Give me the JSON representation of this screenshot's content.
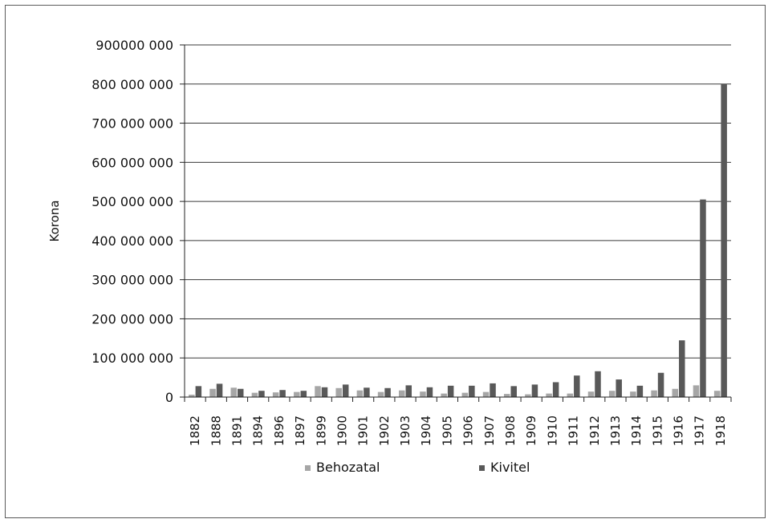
{
  "chart_data": {
    "type": "bar",
    "ylabel": "Korona",
    "ylim": [
      0,
      900000000
    ],
    "grid": true,
    "legend_position": "bottom",
    "y_tick_values": [
      0,
      100000000,
      200000000,
      300000000,
      400000000,
      500000000,
      600000000,
      700000000,
      800000000,
      900000000
    ],
    "y_tick_labels": [
      "0",
      "100 000 000",
      "200 000 000",
      "300 000 000",
      "400 000 000",
      "500 000 000",
      "600 000 000",
      "700 000 000",
      "800 000 000",
      "900000 000"
    ],
    "categories": [
      "1882",
      "1888",
      "1891",
      "1894",
      "1896",
      "1897",
      "1899",
      "1900",
      "1901",
      "1902",
      "1903",
      "1904",
      "1905",
      "1906",
      "1907",
      "1908",
      "1909",
      "1910",
      "1911",
      "1912",
      "1913",
      "1914",
      "1915",
      "1916",
      "1917",
      "1918"
    ],
    "series": [
      {
        "name": "Behozatal",
        "color": "#a6a6a6",
        "values": [
          6000000,
          21000000,
          24000000,
          11000000,
          12000000,
          13000000,
          28000000,
          23000000,
          17000000,
          13000000,
          17000000,
          14000000,
          9000000,
          11000000,
          13000000,
          8000000,
          7000000,
          9000000,
          9000000,
          14000000,
          16000000,
          14000000,
          17000000,
          21000000,
          30000000,
          16000000
        ]
      },
      {
        "name": "Kivitel",
        "color": "#595959",
        "values": [
          28000000,
          34000000,
          21000000,
          16000000,
          18000000,
          16000000,
          25000000,
          32000000,
          24000000,
          23000000,
          30000000,
          25000000,
          29000000,
          29000000,
          35000000,
          28000000,
          32000000,
          38000000,
          55000000,
          66000000,
          45000000,
          29000000,
          62000000,
          145000000,
          505000000,
          800000000
        ]
      }
    ]
  }
}
